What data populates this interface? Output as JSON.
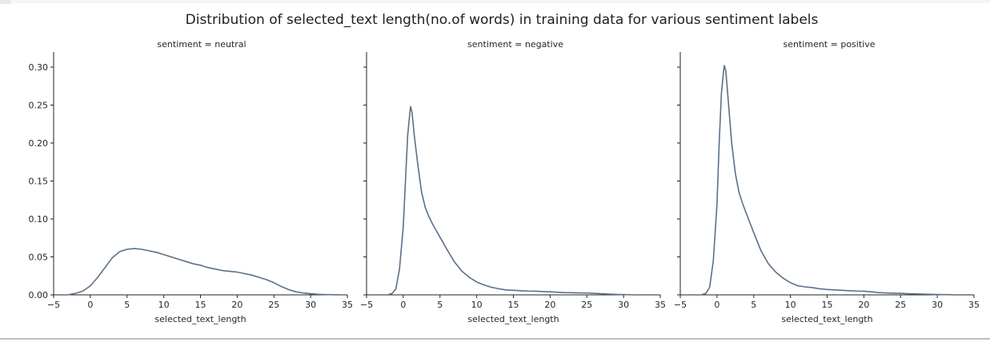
{
  "figure": {
    "title": "Distribution of selected_text length(no.of words) in training data for various sentiment labels"
  },
  "colors": {
    "line": "#5b7088",
    "axis": "#222222",
    "text": "#262626"
  },
  "chart_data": [
    {
      "type": "line",
      "panel_title": "sentiment = neutral",
      "xlabel": "selected_text_length",
      "ylabel": "",
      "xlim": [
        -5,
        35
      ],
      "ylim": [
        0,
        0.32
      ],
      "xticks": [
        -5,
        0,
        5,
        10,
        15,
        20,
        25,
        30,
        35
      ],
      "yticks": [
        0.0,
        0.05,
        0.1,
        0.15,
        0.2,
        0.25,
        0.3
      ],
      "grid": false,
      "series": [
        {
          "x": [
            -3,
            -2,
            -1,
            0,
            1,
            2,
            3,
            4,
            5,
            6,
            7,
            8,
            9,
            10,
            11,
            12,
            13,
            14,
            15,
            16,
            17,
            18,
            19,
            20,
            21,
            22,
            23,
            24,
            25,
            26,
            27,
            28,
            29,
            30,
            31,
            32,
            33,
            34
          ],
          "y": [
            0.0002,
            0.002,
            0.005,
            0.012,
            0.023,
            0.036,
            0.049,
            0.057,
            0.06,
            0.061,
            0.06,
            0.058,
            0.056,
            0.053,
            0.05,
            0.047,
            0.044,
            0.041,
            0.039,
            0.036,
            0.034,
            0.032,
            0.031,
            0.03,
            0.028,
            0.026,
            0.023,
            0.02,
            0.016,
            0.011,
            0.007,
            0.004,
            0.0025,
            0.0015,
            0.0008,
            0.0004,
            0.0002,
            0.0001
          ]
        }
      ]
    },
    {
      "type": "line",
      "panel_title": "sentiment = negative",
      "xlabel": "selected_text_length",
      "ylabel": "",
      "xlim": [
        -5,
        35
      ],
      "ylim": [
        0,
        0.32
      ],
      "xticks": [
        -5,
        0,
        5,
        10,
        15,
        20,
        25,
        30,
        35
      ],
      "yticks": [
        0.0,
        0.05,
        0.1,
        0.15,
        0.2,
        0.25,
        0.3
      ],
      "grid": false,
      "series": [
        {
          "x": [
            -2,
            -1.5,
            -1,
            -0.5,
            0,
            0.3,
            0.6,
            0.9,
            1.0,
            1.2,
            1.5,
            2.0,
            2.5,
            3.0,
            3.5,
            4.0,
            5.0,
            6.0,
            7.0,
            8.0,
            9.0,
            10.0,
            11.0,
            12.0,
            13.0,
            14.0,
            15.0,
            16.0,
            17.0,
            18.0,
            19.0,
            20.0,
            21.0,
            22.0,
            23.0,
            24.0,
            25.0,
            26.0,
            27.0,
            28.0,
            29.0,
            30.0,
            31.0
          ],
          "y": [
            0.0005,
            0.002,
            0.008,
            0.035,
            0.09,
            0.15,
            0.21,
            0.24,
            0.248,
            0.24,
            0.21,
            0.17,
            0.135,
            0.115,
            0.103,
            0.093,
            0.076,
            0.059,
            0.043,
            0.031,
            0.023,
            0.017,
            0.013,
            0.01,
            0.008,
            0.0065,
            0.006,
            0.0055,
            0.005,
            0.0048,
            0.0044,
            0.004,
            0.0035,
            0.003,
            0.0028,
            0.0026,
            0.0025,
            0.002,
            0.0015,
            0.001,
            0.0006,
            0.0004,
            0.0002
          ]
        }
      ]
    },
    {
      "type": "line",
      "panel_title": "sentiment = positive",
      "xlabel": "selected_text_length",
      "ylabel": "",
      "xlim": [
        -5,
        35
      ],
      "ylim": [
        0,
        0.32
      ],
      "xticks": [
        -5,
        0,
        5,
        10,
        15,
        20,
        25,
        30,
        35
      ],
      "yticks": [
        0.0,
        0.05,
        0.1,
        0.15,
        0.2,
        0.25,
        0.3
      ],
      "grid": false,
      "series": [
        {
          "x": [
            -2,
            -1.5,
            -1,
            -0.5,
            0,
            0.3,
            0.6,
            0.9,
            1.0,
            1.2,
            1.5,
            2.0,
            2.5,
            3.0,
            3.5,
            4.0,
            5.0,
            6.0,
            7.0,
            8.0,
            9.0,
            10.0,
            11.0,
            12.0,
            13.0,
            14.0,
            15.0,
            16.0,
            17.0,
            18.0,
            19.0,
            20.0,
            21.0,
            22.0,
            23.0,
            24.0,
            25.0,
            26.0,
            27.0,
            28.0,
            29.0,
            30.0,
            31.0,
            32.0
          ],
          "y": [
            0.0005,
            0.002,
            0.01,
            0.045,
            0.12,
            0.2,
            0.265,
            0.295,
            0.302,
            0.295,
            0.26,
            0.2,
            0.16,
            0.135,
            0.12,
            0.107,
            0.082,
            0.058,
            0.041,
            0.03,
            0.022,
            0.016,
            0.012,
            0.0105,
            0.0095,
            0.008,
            0.007,
            0.0065,
            0.006,
            0.0055,
            0.005,
            0.0048,
            0.004,
            0.003,
            0.0025,
            0.0022,
            0.002,
            0.0015,
            0.0012,
            0.001,
            0.0007,
            0.0005,
            0.0003,
            0.0002
          ]
        }
      ]
    }
  ]
}
